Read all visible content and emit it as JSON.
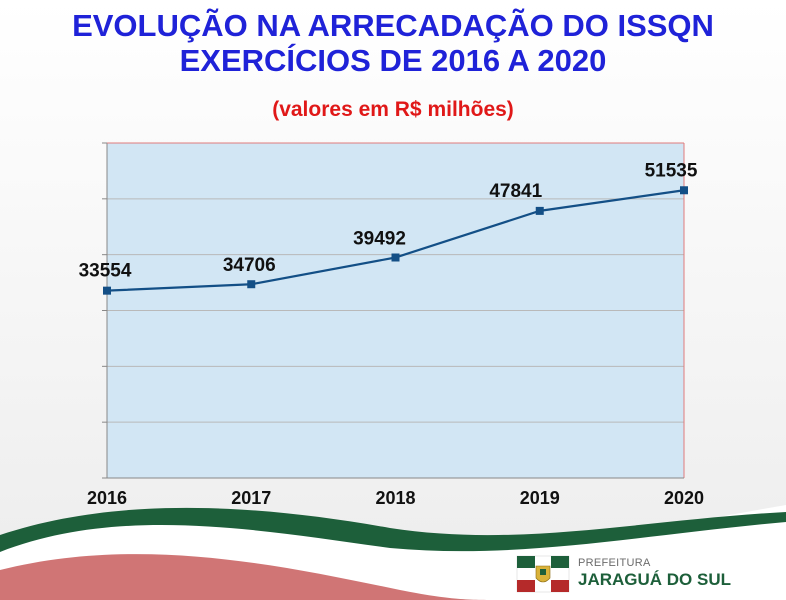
{
  "title_line1": "EVOLUÇÃO NA ARRECADAÇÃO DO ISSQN",
  "title_line2": "EXERCÍCIOS DE 2016 A 2020",
  "subtitle": "(valores em R$ milhões)",
  "colors": {
    "title": "#1f22d8",
    "subtitle": "#e01818",
    "plot_bg": "#d2e6f4",
    "line": "#134f86",
    "green": "#1d5f3a",
    "red": "#b52a2a"
  },
  "chart_data": {
    "type": "line",
    "categories": [
      "2016",
      "2017",
      "2018",
      "2019",
      "2020"
    ],
    "series": [
      {
        "values": [
          33554,
          34706,
          39492,
          47841,
          51535
        ]
      }
    ],
    "data_labels": [
      "33554",
      "34706",
      "39492",
      "47841",
      "51535"
    ],
    "ylim": [
      0,
      60000
    ],
    "ytick_step": 10000,
    "grid": true,
    "legend": "none"
  },
  "logo": {
    "small_text": "PREFEITURA",
    "big_text": "JARAGUÁ DO SUL"
  }
}
